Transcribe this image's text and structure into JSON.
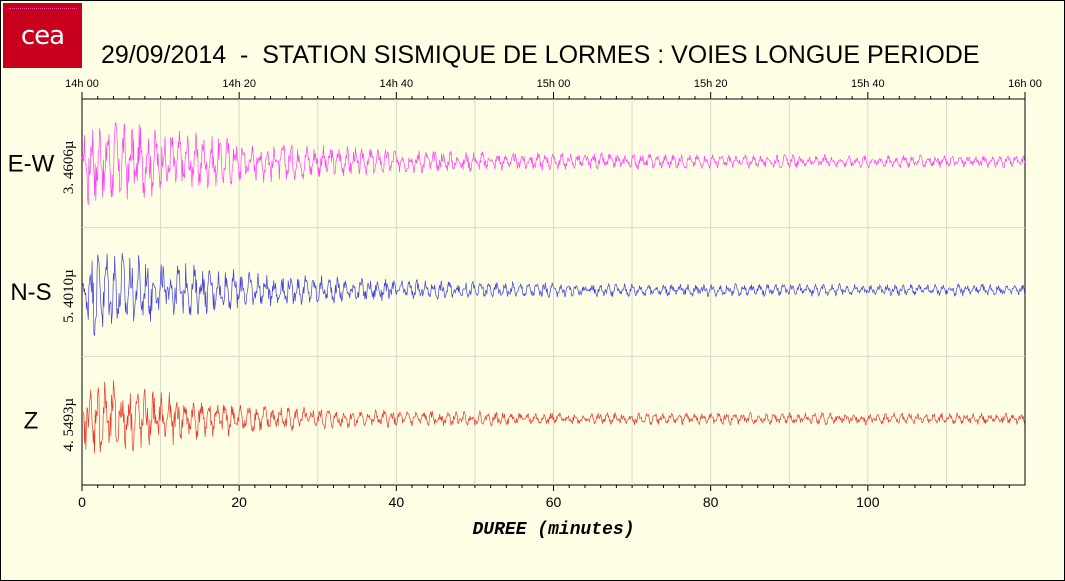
{
  "logo": {
    "text": "cea",
    "color": "#c8001e"
  },
  "title": "29/09/2014  -  STATION SISMIQUE DE LORMES : VOIES LONGUE PERIODE",
  "chart_data": {
    "type": "line",
    "title": "29/09/2014  -  STATION SISMIQUE DE LORMES : VOIES LONGUE PERIODE",
    "xlabel": "DUREE (minutes)",
    "ylabel": "",
    "xlim": [
      0,
      120
    ],
    "x_ticks": [
      0,
      20,
      40,
      60,
      80,
      100
    ],
    "x_tick_labels": [
      "0",
      "20",
      "40",
      "60",
      "80",
      "100"
    ],
    "top_ticks": [
      0,
      20,
      40,
      60,
      80,
      100,
      120
    ],
    "top_tick_labels": [
      "14h 00",
      "14h 20",
      "14h 40",
      "15h 00",
      "15h 20",
      "15h 40",
      "16h 00"
    ],
    "grid": true,
    "series": [
      {
        "name": "E-W",
        "scale_label": "3. 4606µ",
        "color": "#ff40ff",
        "description_values": {
          "peak_amplitude": 1.0,
          "decay_minutes": 22
        }
      },
      {
        "name": "N-S",
        "scale_label": "5. 4010µ",
        "color": "#4040e0",
        "description_values": {
          "peak_amplitude": 1.0,
          "decay_minutes": 18
        }
      },
      {
        "name": "Z",
        "scale_label": "4. 5493µ",
        "color": "#e8382e",
        "description_values": {
          "peak_amplitude": 1.0,
          "decay_minutes": 14
        }
      }
    ]
  }
}
